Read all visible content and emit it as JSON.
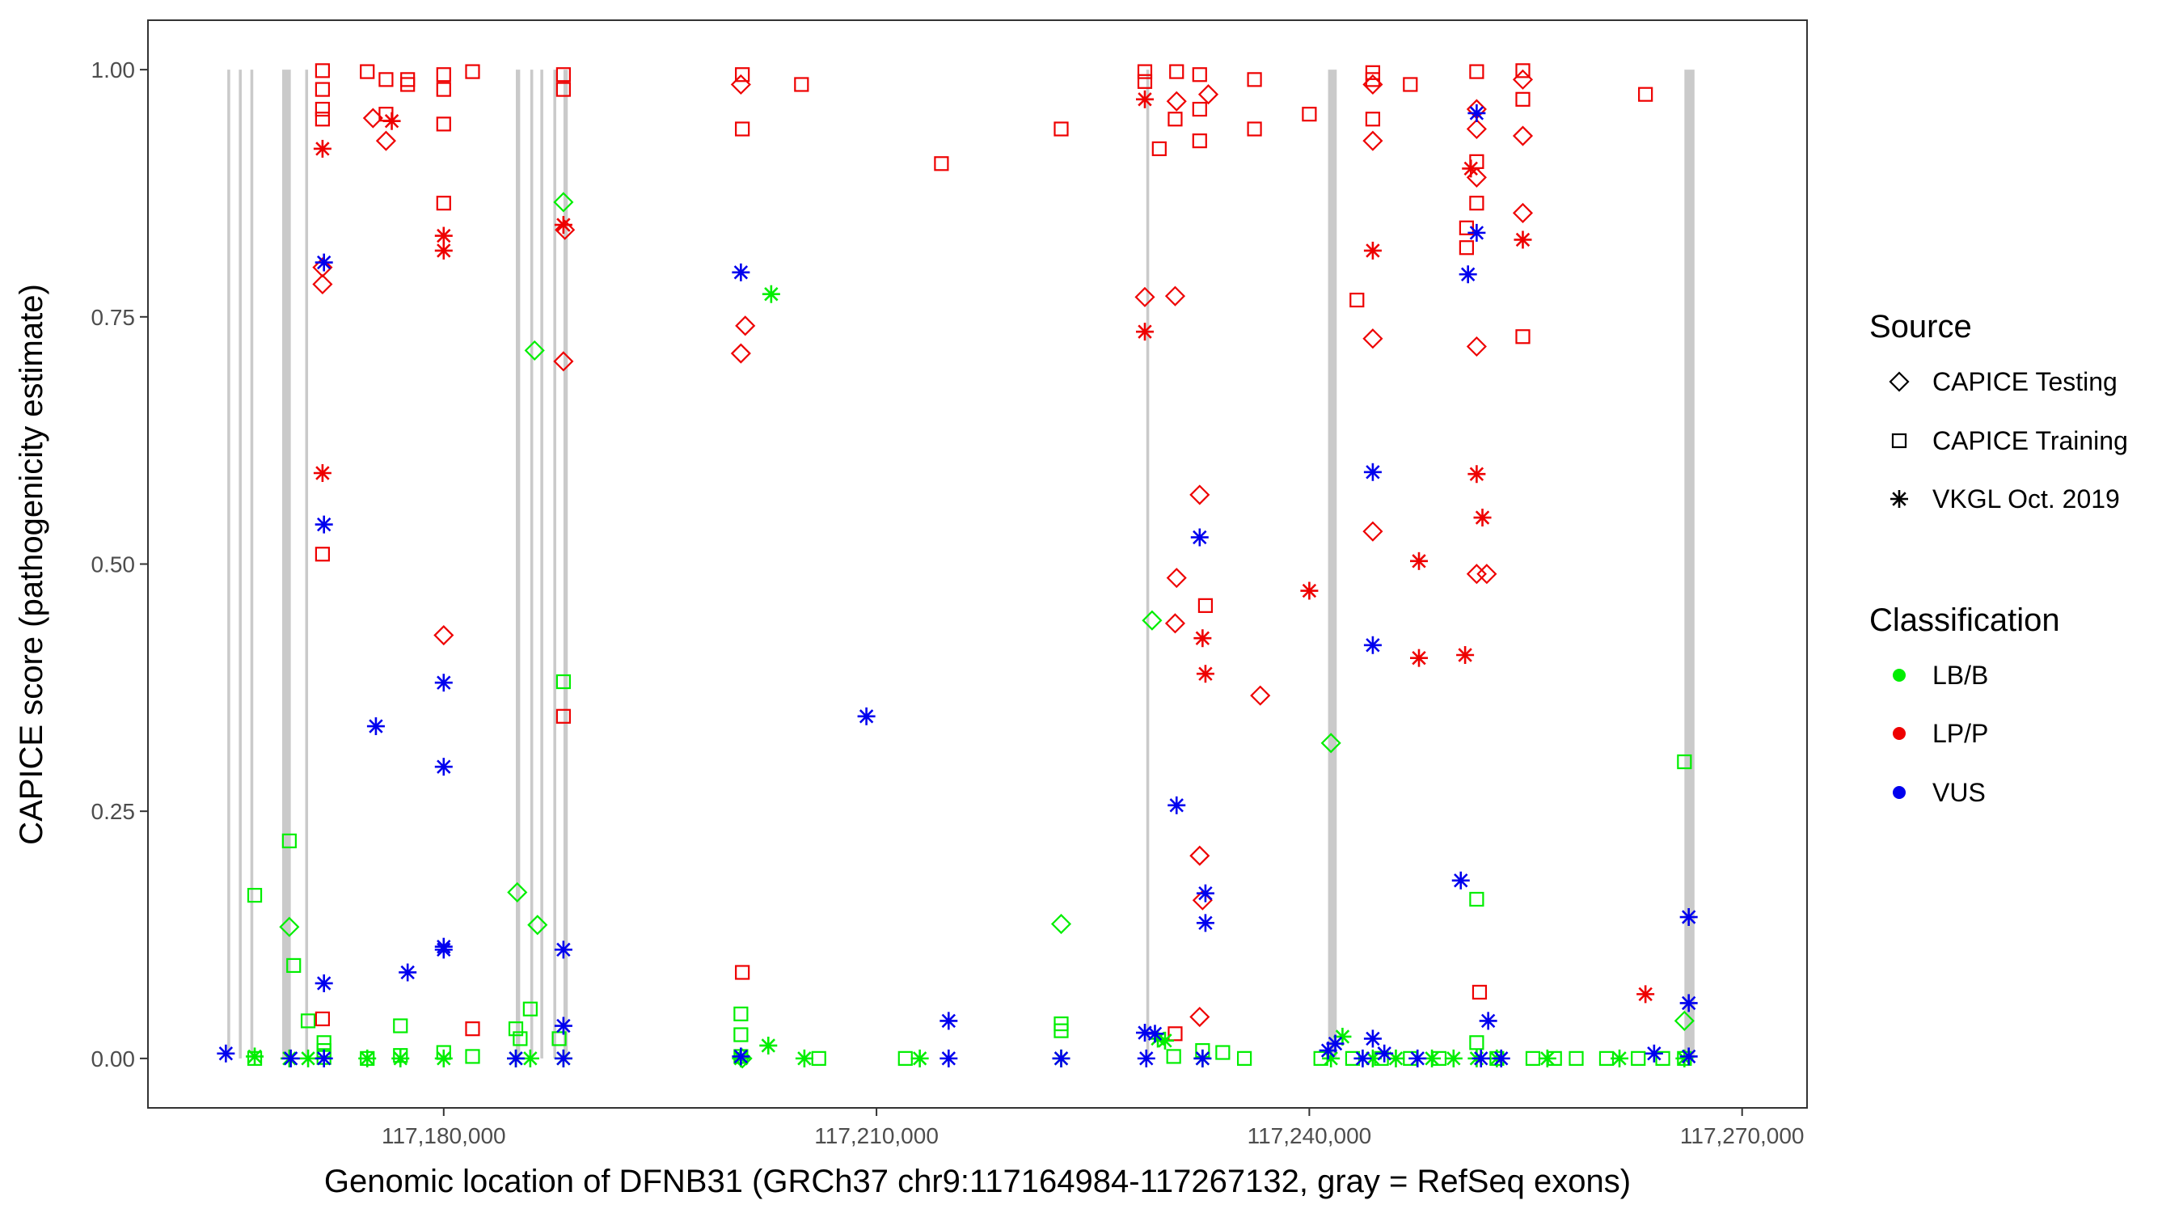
{
  "chart_data": {
    "type": "scatter",
    "xlabel": "Genomic location of DFNB31 (GRCh37 chr9:117164984-117267132, gray = RefSeq exons)",
    "ylabel": "CAPICE score (pathogenicity estimate)",
    "xlim": [
      117159500,
      117274500
    ],
    "ylim": [
      -0.05,
      1.05
    ],
    "x_ticks": [
      117180000,
      117210000,
      117240000,
      117270000
    ],
    "x_tick_labels": [
      "117,180,000",
      "117,210,000",
      "117,240,000",
      "117,270,000"
    ],
    "y_ticks": [
      0,
      0.25,
      0.5,
      0.75,
      1.0
    ],
    "y_tick_labels": [
      "0.00",
      "0.25",
      "0.50",
      "0.75",
      "1.00"
    ],
    "exons": [
      [
        117165000,
        117165200
      ],
      [
        117165800,
        117166000
      ],
      [
        117166600,
        117166800
      ],
      [
        117168800,
        117169400
      ],
      [
        117170400,
        117170600
      ],
      [
        117185000,
        117185300
      ],
      [
        117186000,
        117186200
      ],
      [
        117186700,
        117186900
      ],
      [
        117187600,
        117187800
      ],
      [
        117188300,
        117188600
      ],
      [
        117228700,
        117228900
      ],
      [
        117241300,
        117241900
      ],
      [
        117266000,
        117266700
      ]
    ],
    "legend_source": {
      "title": "Source",
      "entries": [
        {
          "label": "CAPICE Testing",
          "shape": "diamond"
        },
        {
          "label": "CAPICE Training",
          "shape": "square"
        },
        {
          "label": "VKGL Oct. 2019",
          "shape": "asterisk"
        }
      ]
    },
    "legend_classification": {
      "title": "Classification",
      "entries": [
        {
          "label": "LB/B",
          "color": "#00ee00"
        },
        {
          "label": "LP/P",
          "color": "#ee0000"
        },
        {
          "label": "VUS",
          "color": "#0000ee"
        }
      ]
    },
    "series": [
      {
        "name": "CAPICE Testing LB/B",
        "shape": "diamond",
        "color": "#00ee00",
        "x": [
          117169300,
          117185100,
          117186500,
          117188300,
          117186300,
          117200700,
          117222800,
          117229100,
          117241500,
          117266000
        ],
        "y": [
          0.133,
          0.168,
          0.135,
          0.866,
          0.716,
          0.0,
          0.136,
          0.443,
          0.319,
          0.038
        ]
      },
      {
        "name": "CAPICE Testing LP/P",
        "shape": "diamond",
        "color": "#ee0000",
        "x": [
          117171600,
          117171600,
          117175100,
          117176000,
          117180000,
          117188400,
          117188300,
          117200900,
          117200600,
          117200600,
          117228600,
          117230700,
          117230800,
          117230700,
          117230800,
          117232400,
          117232400,
          117232400,
          117232600,
          117233000,
          117236600,
          117244400,
          117244400,
          117244400,
          117244400,
          117251600,
          117251600,
          117251600,
          117251600,
          117251600,
          117252300,
          117254800,
          117254800,
          117254800
        ],
        "y": [
          0.8,
          0.783,
          0.951,
          0.928,
          0.428,
          0.838,
          0.705,
          0.741,
          0.713,
          0.985,
          0.77,
          0.771,
          0.486,
          0.44,
          0.968,
          0.57,
          0.205,
          0.042,
          0.16,
          0.975,
          0.367,
          0.928,
          0.728,
          0.533,
          0.985,
          0.891,
          0.94,
          0.72,
          0.49,
          0.96,
          0.49,
          0.933,
          0.855,
          0.99
        ]
      },
      {
        "name": "CAPICE Training LB/B",
        "shape": "square",
        "color": "#00ee00",
        "x": [
          117166900,
          117166900,
          117169300,
          117169600,
          117170600,
          117171700,
          117171700,
          117171700,
          117174700,
          117177000,
          117177000,
          117180000,
          117182000,
          117185000,
          117185300,
          117186000,
          117188000,
          117188300,
          117200600,
          117200600,
          117200600,
          117206000,
          117212000,
          117222800,
          117222800,
          117230600,
          117232600,
          117234000,
          117235500,
          117240800,
          117243000,
          117245000,
          117247000,
          117249000,
          117251600,
          117251600,
          117253000,
          117255500,
          117257000,
          117258500,
          117260600,
          117262800,
          117264500,
          117266000,
          117266000
        ],
        "y": [
          0.165,
          0.0,
          0.22,
          0.094,
          0.038,
          0.016,
          0.008,
          0.001,
          0.0,
          0.033,
          0.003,
          0.006,
          0.002,
          0.03,
          0.02,
          0.05,
          0.02,
          0.381,
          0.045,
          0.024,
          0.002,
          0.0,
          0.0,
          0.035,
          0.028,
          0.002,
          0.008,
          0.006,
          0.0,
          0.0,
          0.0,
          0.0,
          0.0,
          0.0,
          0.161,
          0.016,
          0.0,
          0.0,
          0.0,
          0.0,
          0.0,
          0.0,
          0.0,
          0.3,
          0.0
        ]
      },
      {
        "name": "CAPICE Training LP/P",
        "shape": "square",
        "color": "#ee0000",
        "x": [
          117171600,
          117171600,
          117171600,
          117171600,
          117171600,
          117171600,
          117174700,
          117176000,
          117176000,
          117177500,
          117177500,
          117180000,
          117180000,
          117180000,
          117180000,
          117182000,
          117182000,
          117188300,
          117188300,
          117188300,
          117200700,
          117200700,
          117200700,
          117204800,
          117214500,
          117222800,
          117228600,
          117228600,
          117229600,
          117230700,
          117230700,
          117230800,
          117232400,
          117232400,
          117232400,
          117232800,
          117236200,
          117236200,
          117240000,
          117243300,
          117244400,
          117244400,
          117244400,
          117247000,
          117250900,
          117250900,
          117251600,
          117251600,
          117251600,
          117251800,
          117254800,
          117254800,
          117254800,
          117263300
        ],
        "y": [
          0.999,
          0.98,
          0.96,
          0.95,
          0.51,
          0.04,
          0.998,
          0.99,
          0.955,
          0.99,
          0.985,
          0.945,
          0.865,
          0.995,
          0.98,
          0.998,
          0.03,
          0.995,
          0.98,
          0.346,
          0.995,
          0.94,
          0.087,
          0.985,
          0.905,
          0.94,
          0.998,
          0.988,
          0.92,
          0.95,
          0.025,
          0.998,
          0.995,
          0.928,
          0.96,
          0.458,
          0.99,
          0.94,
          0.955,
          0.767,
          0.99,
          0.997,
          0.95,
          0.985,
          0.84,
          0.82,
          0.998,
          0.907,
          0.865,
          0.067,
          0.999,
          0.97,
          0.73,
          0.975
        ]
      },
      {
        "name": "VKGL Oct. 2019 LB/B",
        "shape": "asterisk",
        "color": "#00ee00",
        "x": [
          117166900,
          117169300,
          117170600,
          117174700,
          117177000,
          117180000,
          117185000,
          117186000,
          117188300,
          117200600,
          117202700,
          117202500,
          117205000,
          117213000,
          117222800,
          117229500,
          117230000,
          117232600,
          117241500,
          117242300,
          117244400,
          117246000,
          117248500,
          117250000,
          117251600,
          117253000,
          117256500,
          117261500,
          117266000
        ],
        "y": [
          0.002,
          0.0,
          0.0,
          0.0,
          0.0,
          0.0,
          0.0,
          0.0,
          0.0,
          0.0,
          0.773,
          0.013,
          0.0,
          0.0,
          0.0,
          0.02,
          0.018,
          0.0,
          0.0,
          0.022,
          0.0,
          0.0,
          0.0,
          0.0,
          0.0,
          0.0,
          0.0,
          0.0,
          0.0
        ]
      },
      {
        "name": "VKGL Oct. 2019 LP/P",
        "shape": "asterisk",
        "color": "#ee0000",
        "x": [
          117171600,
          117171600,
          117176400,
          117180000,
          117180000,
          117188300,
          117228600,
          117228600,
          117232600,
          117232800,
          117240000,
          117244400,
          117247600,
          117247600,
          117250800,
          117251200,
          117251600,
          117252000,
          117254800,
          117263300
        ],
        "y": [
          0.92,
          0.592,
          0.948,
          0.832,
          0.817,
          0.843,
          0.735,
          0.97,
          0.425,
          0.389,
          0.473,
          0.817,
          0.503,
          0.405,
          0.408,
          0.9,
          0.591,
          0.547,
          0.828,
          0.065
        ]
      },
      {
        "name": "VKGL Oct. 2019 VUS",
        "shape": "asterisk",
        "color": "#0000ee",
        "x": [
          117164900,
          117169400,
          117171700,
          117171700,
          117171700,
          117171700,
          117175300,
          117177500,
          117180000,
          117180000,
          117180000,
          117180000,
          117185000,
          117188300,
          117188300,
          117188300,
          117200600,
          117200600,
          117209300,
          117215000,
          117215000,
          117222800,
          117228600,
          117228700,
          117229300,
          117230800,
          117232400,
          117232600,
          117232800,
          117232800,
          117241300,
          117241800,
          117243700,
          117244400,
          117244400,
          117244400,
          117245200,
          117247500,
          117250500,
          117251000,
          117251600,
          117251600,
          117251900,
          117252400,
          117253300,
          117263900,
          117266300,
          117266300,
          117266300
        ],
        "y": [
          0.005,
          0.0,
          0.805,
          0.54,
          0.076,
          0.0,
          0.336,
          0.087,
          0.38,
          0.295,
          0.113,
          0.11,
          0.0,
          0.11,
          0.033,
          0.0,
          0.795,
          0.002,
          0.346,
          0.038,
          0.0,
          0.0,
          0.026,
          0.0,
          0.025,
          0.256,
          0.527,
          0.0,
          0.167,
          0.137,
          0.008,
          0.015,
          0.0,
          0.593,
          0.418,
          0.02,
          0.005,
          0.0,
          0.18,
          0.793,
          0.956,
          0.835,
          0.0,
          0.038,
          0.0,
          0.005,
          0.143,
          0.056,
          0.002
        ]
      }
    ]
  }
}
